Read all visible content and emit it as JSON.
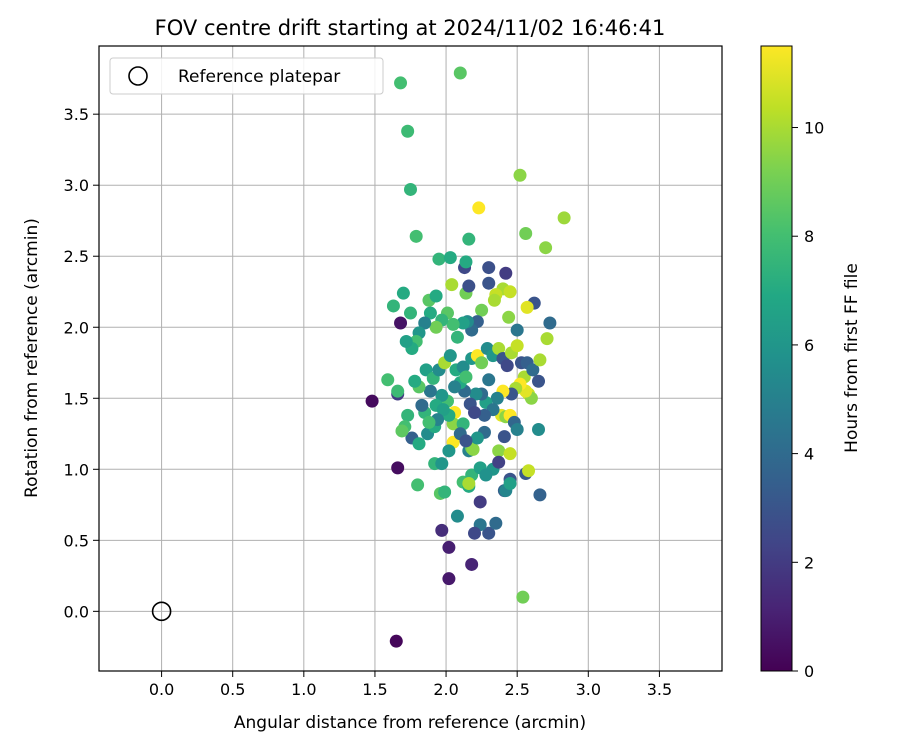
{
  "chart_data": {
    "type": "scatter",
    "title": "FOV centre drift starting at 2024/11/02 16:46:41",
    "xlabel": "Angular distance from reference (arcmin)",
    "ylabel": "Rotation from reference (arcmin)",
    "xlim": [
      -0.44,
      3.94
    ],
    "ylim": [
      -0.42,
      3.98
    ],
    "xticks": [
      "0.0",
      "0.5",
      "1.0",
      "1.5",
      "2.0",
      "2.5",
      "3.0",
      "3.5"
    ],
    "yticks": [
      "0.0",
      "0.5",
      "1.0",
      "1.5",
      "2.0",
      "2.5",
      "3.0",
      "3.5"
    ],
    "grid": true,
    "legend": {
      "entries": [
        "Reference platepar"
      ],
      "position": "top-left"
    },
    "reference_point": {
      "x": 0.0,
      "y": 0.0,
      "label": "Reference platepar"
    },
    "colorbar": {
      "label": "Hours from first FF file",
      "range": [
        0,
        11.5
      ],
      "ticks": [
        "0",
        "2",
        "4",
        "6",
        "8",
        "10"
      ],
      "colormap": "viridis"
    },
    "series": [
      {
        "points": [
          [
            1.65,
            -0.21,
            0.2
          ],
          [
            2.02,
            0.23,
            0.8
          ],
          [
            2.18,
            0.33,
            1.2
          ],
          [
            2.02,
            0.45,
            1.0
          ],
          [
            1.97,
            0.57,
            1.5
          ],
          [
            1.48,
            1.48,
            0.3
          ],
          [
            1.66,
            1.01,
            0.4
          ],
          [
            1.68,
            2.03,
            0.6
          ],
          [
            2.24,
            0.77,
            2.0
          ],
          [
            2.3,
            0.55,
            3.0
          ],
          [
            2.35,
            0.62,
            4.0
          ],
          [
            2.24,
            0.61,
            4.5
          ],
          [
            2.2,
            0.55,
            2.5
          ],
          [
            2.41,
            0.85,
            3.5
          ],
          [
            2.45,
            0.93,
            3.0
          ],
          [
            2.56,
            0.97,
            3.2
          ],
          [
            2.66,
            0.82,
            3.6
          ],
          [
            2.42,
            0.85,
            5.2
          ],
          [
            2.08,
            0.67,
            5.5
          ],
          [
            2.12,
            0.91,
            8.0
          ],
          [
            2.16,
            0.88,
            7.0
          ],
          [
            2.18,
            0.96,
            7.5
          ],
          [
            2.24,
            1.01,
            6.5
          ],
          [
            1.96,
            0.83,
            8.5
          ],
          [
            1.99,
            0.84,
            7.5
          ],
          [
            1.92,
            1.04,
            7.5
          ],
          [
            1.97,
            1.04,
            6.0
          ],
          [
            1.8,
            0.89,
            8.0
          ],
          [
            1.76,
            1.22,
            3.5
          ],
          [
            1.81,
            1.18,
            7.0
          ],
          [
            1.87,
            1.25,
            5.5
          ],
          [
            1.92,
            1.3,
            7.0
          ],
          [
            1.73,
            1.38,
            7.5
          ],
          [
            1.71,
            1.3,
            8.0
          ],
          [
            1.69,
            1.27,
            8.6
          ],
          [
            1.66,
            1.53,
            2.0
          ],
          [
            1.66,
            1.55,
            7.8
          ],
          [
            1.59,
            1.63,
            8.0
          ],
          [
            2.05,
            1.19,
            11.5
          ],
          [
            2.06,
            1.4,
            11.5
          ],
          [
            2.05,
            1.32,
            9.5
          ],
          [
            2.12,
            1.32,
            7.5
          ],
          [
            2.16,
            1.13,
            5.0
          ],
          [
            2.18,
            1.15,
            9.0
          ],
          [
            2.19,
            1.14,
            9.5
          ],
          [
            2.16,
            0.9,
            10.0
          ],
          [
            2.27,
            1.26,
            4.0
          ],
          [
            2.22,
            1.22,
            6.0
          ],
          [
            2.37,
            1.13,
            9.5
          ],
          [
            2.39,
            1.38,
            11.0
          ],
          [
            2.42,
            1.37,
            9.5
          ],
          [
            2.45,
            1.38,
            11.5
          ],
          [
            2.45,
            1.11,
            10.5
          ],
          [
            2.41,
            1.23,
            3.0
          ],
          [
            2.48,
            1.33,
            3.8
          ],
          [
            2.58,
            0.99,
            10.5
          ],
          [
            2.54,
            0.1,
            9.0
          ],
          [
            2.65,
            1.28,
            5.5
          ],
          [
            2.58,
            1.53,
            10.5
          ],
          [
            2.6,
            1.5,
            9.5
          ],
          [
            2.55,
            1.65,
            10.0
          ],
          [
            2.56,
            1.55,
            11.0
          ],
          [
            2.52,
            1.6,
            11.5
          ],
          [
            2.49,
            1.57,
            10.0
          ],
          [
            2.46,
            1.53,
            3.0
          ],
          [
            2.4,
            1.55,
            11.5
          ],
          [
            2.36,
            1.5,
            5.0
          ],
          [
            2.3,
            1.63,
            4.5
          ],
          [
            2.28,
            1.47,
            6.5
          ],
          [
            2.25,
            1.53,
            4.0
          ],
          [
            2.21,
            1.53,
            5.5
          ],
          [
            2.17,
            1.46,
            3.0
          ],
          [
            2.13,
            1.55,
            4.0
          ],
          [
            2.1,
            1.61,
            7.0
          ],
          [
            2.06,
            1.58,
            5.0
          ],
          [
            2.01,
            1.48,
            8.0
          ],
          [
            1.97,
            1.52,
            6.0
          ],
          [
            1.93,
            1.45,
            7.0
          ],
          [
            1.89,
            1.55,
            4.5
          ],
          [
            1.85,
            1.4,
            7.5
          ],
          [
            1.81,
            1.58,
            8.5
          ],
          [
            1.78,
            1.62,
            7.0
          ],
          [
            1.86,
            1.7,
            6.5
          ],
          [
            1.91,
            1.64,
            7.5
          ],
          [
            1.95,
            1.7,
            5.5
          ],
          [
            1.99,
            1.75,
            10.0
          ],
          [
            2.03,
            1.8,
            6.0
          ],
          [
            2.07,
            1.7,
            7.0
          ],
          [
            2.12,
            1.72,
            5.5
          ],
          [
            2.14,
            1.65,
            8.0
          ],
          [
            2.18,
            1.78,
            6.0
          ],
          [
            2.22,
            1.8,
            11.5
          ],
          [
            2.25,
            1.75,
            9.0
          ],
          [
            2.29,
            1.85,
            5.5
          ],
          [
            2.33,
            1.8,
            6.0
          ],
          [
            2.37,
            1.85,
            10.0
          ],
          [
            2.4,
            1.78,
            3.0
          ],
          [
            2.43,
            1.73,
            2.5
          ],
          [
            2.46,
            1.82,
            10.0
          ],
          [
            2.5,
            1.87,
            10.5
          ],
          [
            2.53,
            1.75,
            3.0
          ],
          [
            2.57,
            1.75,
            3.5
          ],
          [
            2.61,
            1.7,
            4.0
          ],
          [
            2.65,
            1.62,
            3.0
          ],
          [
            2.66,
            1.77,
            10.0
          ],
          [
            2.71,
            1.92,
            10.0
          ],
          [
            2.73,
            2.03,
            4.0
          ],
          [
            2.62,
            2.17,
            3.0
          ],
          [
            2.57,
            2.14,
            11.0
          ],
          [
            2.5,
            1.98,
            4.5
          ],
          [
            2.44,
            2.07,
            9.5
          ],
          [
            2.4,
            2.27,
            10.0
          ],
          [
            2.42,
            2.38,
            2.0
          ],
          [
            2.45,
            2.25,
            10.5
          ],
          [
            2.35,
            2.23,
            10.5
          ],
          [
            2.34,
            2.19,
            10.0
          ],
          [
            2.3,
            2.31,
            3.0
          ],
          [
            2.3,
            2.42,
            2.8
          ],
          [
            2.25,
            2.12,
            9.0
          ],
          [
            2.22,
            2.04,
            3.5
          ],
          [
            2.18,
            1.98,
            4.0
          ],
          [
            2.15,
            2.04,
            5.5
          ],
          [
            2.12,
            2.03,
            6.5
          ],
          [
            2.08,
            1.93,
            7.5
          ],
          [
            2.05,
            2.02,
            8.0
          ],
          [
            2.01,
            2.1,
            8.5
          ],
          [
            1.97,
            2.05,
            7.5
          ],
          [
            1.93,
            2.0,
            9.0
          ],
          [
            1.89,
            2.1,
            7.0
          ],
          [
            1.85,
            2.03,
            5.0
          ],
          [
            1.81,
            1.96,
            6.0
          ],
          [
            1.79,
            1.9,
            8.0
          ],
          [
            1.76,
            1.85,
            7.0
          ],
          [
            1.72,
            1.9,
            6.5
          ],
          [
            1.75,
            2.1,
            7.5
          ],
          [
            1.7,
            2.24,
            7.0
          ],
          [
            1.63,
            2.15,
            7.5
          ],
          [
            1.88,
            2.19,
            8.5
          ],
          [
            1.93,
            2.22,
            7.0
          ],
          [
            1.95,
            2.48,
            7.5
          ],
          [
            2.03,
            2.49,
            7.0
          ],
          [
            2.04,
            2.3,
            10.0
          ],
          [
            2.14,
            2.24,
            9.0
          ],
          [
            2.16,
            2.29,
            2.8
          ],
          [
            2.13,
            2.42,
            2.5
          ],
          [
            2.14,
            2.46,
            7.0
          ],
          [
            2.16,
            2.62,
            7.5
          ],
          [
            2.23,
            2.84,
            11.5
          ],
          [
            2.52,
            3.07,
            9.5
          ],
          [
            2.56,
            2.66,
            9.0
          ],
          [
            2.7,
            2.56,
            9.5
          ],
          [
            2.83,
            2.77,
            9.8
          ],
          [
            1.79,
            2.64,
            8.0
          ],
          [
            1.75,
            2.97,
            7.5
          ],
          [
            1.73,
            3.38,
            7.8
          ],
          [
            1.68,
            3.72,
            8.0
          ],
          [
            2.1,
            3.79,
            8.5
          ],
          [
            2.5,
            1.28,
            5.0
          ],
          [
            2.33,
            1.42,
            4.5
          ],
          [
            2.27,
            1.38,
            3.5
          ],
          [
            2.2,
            1.4,
            2.5
          ],
          [
            2.02,
            1.38,
            7.0
          ],
          [
            1.98,
            1.42,
            6.5
          ],
          [
            1.94,
            1.35,
            5.0
          ],
          [
            1.88,
            1.33,
            8.0
          ],
          [
            1.83,
            1.45,
            4.0
          ],
          [
            2.33,
            1.0,
            6.0
          ],
          [
            2.37,
            1.05,
            2.2
          ],
          [
            2.45,
            0.9,
            6.5
          ],
          [
            2.28,
            0.96,
            5.8
          ],
          [
            2.02,
            1.13,
            6.0
          ],
          [
            2.1,
            1.25,
            4.0
          ],
          [
            2.14,
            1.2,
            3.0
          ]
        ]
      }
    ]
  }
}
